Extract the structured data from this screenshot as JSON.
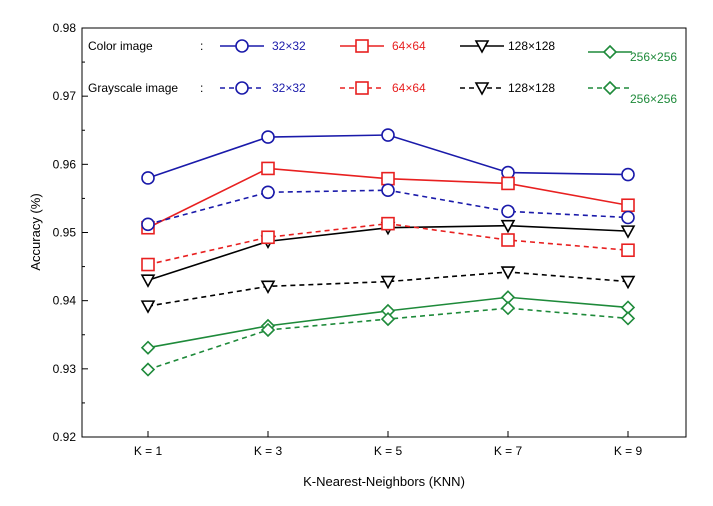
{
  "chart_data": {
    "type": "line",
    "title": "",
    "xlabel": "K-Nearest-Neighbors (KNN)",
    "ylabel": "Accuracy (%)",
    "categories": [
      "K = 1",
      "K = 3",
      "K = 5",
      "K = 7",
      "K = 9"
    ],
    "ylim": [
      0.92,
      0.98
    ],
    "yticks": [
      "0.92",
      "0.93",
      "0.94",
      "0.95",
      "0.96",
      "0.97",
      "0.98"
    ],
    "grid": false,
    "legend": {
      "placement": "top",
      "color_group_label": "Color image",
      "gray_group_label": "Grayscale image",
      "separator": ":"
    },
    "series": [
      {
        "name": "32×32",
        "group": "Color image",
        "color": "#1a1aaa",
        "marker": "circle",
        "dashed": false,
        "values": [
          0.958,
          0.964,
          0.9643,
          0.9588,
          0.9585
        ]
      },
      {
        "name": "64×64",
        "group": "Color image",
        "color": "#e82020",
        "marker": "square",
        "dashed": false,
        "values": [
          0.9507,
          0.9594,
          0.9579,
          0.9572,
          0.954
        ]
      },
      {
        "name": "128×128",
        "group": "Color image",
        "color": "#000000",
        "marker": "triangle-down",
        "dashed": false,
        "values": [
          0.943,
          0.9487,
          0.9507,
          0.951,
          0.9502
        ]
      },
      {
        "name": "256×256",
        "group": "Color image",
        "color": "#1e8a3a",
        "marker": "diamond",
        "dashed": false,
        "values": [
          0.9331,
          0.9363,
          0.9385,
          0.9405,
          0.939
        ]
      },
      {
        "name": "32×32",
        "group": "Grayscale image",
        "color": "#1a1aaa",
        "marker": "circle",
        "dashed": true,
        "values": [
          0.9512,
          0.9559,
          0.9562,
          0.9531,
          0.9522
        ]
      },
      {
        "name": "64×64",
        "group": "Grayscale image",
        "color": "#e82020",
        "marker": "square",
        "dashed": true,
        "values": [
          0.9453,
          0.9493,
          0.9513,
          0.9489,
          0.9474
        ]
      },
      {
        "name": "128×128",
        "group": "Grayscale image",
        "color": "#000000",
        "marker": "triangle-down",
        "dashed": true,
        "values": [
          0.9392,
          0.9421,
          0.9428,
          0.9442,
          0.9428
        ]
      },
      {
        "name": "256×256",
        "group": "Grayscale image",
        "color": "#1e8a3a",
        "marker": "diamond",
        "dashed": true,
        "values": [
          0.9299,
          0.9357,
          0.9373,
          0.9389,
          0.9374
        ]
      }
    ]
  }
}
